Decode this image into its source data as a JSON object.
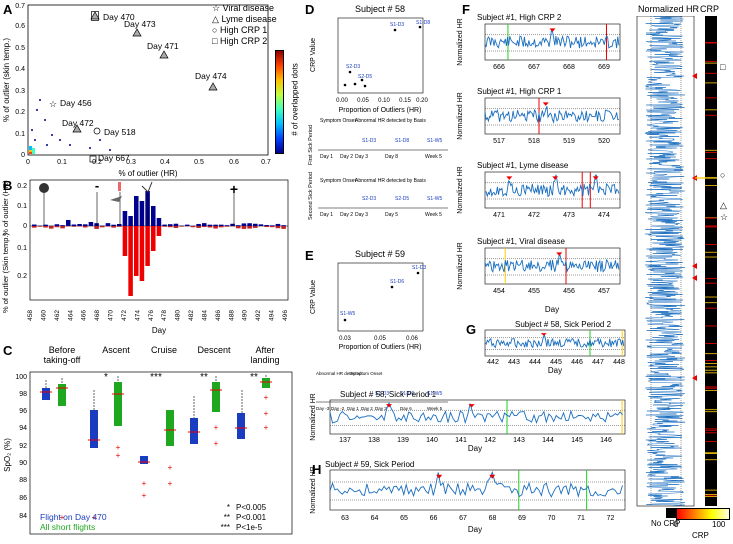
{
  "panel_labels": {
    "A": "A",
    "B": "B",
    "C": "C",
    "D": "D",
    "E": "E",
    "F": "F",
    "G": "G",
    "H": "H"
  },
  "panelA": {
    "legend": [
      "Viral disease",
      "Lyme disease",
      "High CRP 1",
      "High CRP 2"
    ],
    "colorbar_label": "# of overlapped dots",
    "colorbar_colors": [
      "#00008f",
      "#0040ff",
      "#00c0ff",
      "#40ff c0",
      "#c0ff40",
      "#ffc000",
      "#ff4000",
      "#8f0000"
    ]
  },
  "panelB": {
    "xlabel": "Day",
    "ylabel_top": "% of outlier (HR)",
    "ylabel_bottom": "% of outlier (Skin temp.)",
    "plus": "+",
    "minus": "-"
  },
  "panelC": {
    "ylabel": "SpO₂ (%)",
    "groups": [
      "Before taking-off",
      "Ascent",
      "Cruise",
      "Descent",
      "After landing"
    ],
    "signif": [
      "",
      "*",
      "***",
      "**",
      "**"
    ],
    "legend_blue": "Flight on Day 470",
    "legend_green": "All short flights",
    "keys": [
      {
        "sym": "*",
        "txt": "P<0.005"
      },
      {
        "sym": "**",
        "txt": "P<0.001"
      },
      {
        "sym": "***",
        "txt": "P<1e-5"
      }
    ]
  },
  "panelD": {
    "title": "Subject # 58",
    "ylabel": "CRP Value",
    "xlabel": "Proportion of Outliers (HR)",
    "first": "First Sick Period",
    "second": "Second Sick Period",
    "onset": "Symptom Onset",
    "abn": "Abnormal HR detected by Basis",
    "days1": [
      "Day 1",
      "Day 2",
      "Day 3",
      "Day 8",
      "Week 5"
    ],
    "days2": [
      "Day 1",
      "Day 2",
      "Day 3",
      "Day 5",
      "Week 5"
    ]
  },
  "panelE": {
    "title": "Subject # 59",
    "ylabel": "CRP Value",
    "xlabel": "Proportion of Outliers (HR)",
    "abn": "Abnormal HR detected",
    "onset": "Symptom Onset",
    "days": [
      "Day -3",
      "Day -2",
      "Day 1",
      "Day 2",
      "Day 3",
      "Day 6",
      "Week 5"
    ]
  },
  "panelF": {
    "subtitles": [
      "Subject #1, High CRP 2",
      "Subject #1, High CRP 1",
      "Subject #1, Lyme disease",
      "Subject #1, Viral disease"
    ],
    "ylabel": "Normalized HR",
    "xlabel": "Day",
    "ticks": [
      [
        "666",
        "667",
        "668",
        "669"
      ],
      [
        "517",
        "518",
        "519",
        "520"
      ],
      [
        "471",
        "472",
        "473",
        "474"
      ],
      [
        "454",
        "455",
        "456",
        "457"
      ]
    ]
  },
  "panelG": {
    "title1": "Subject # 58, Sick Period 2",
    "ticks1": [
      "442",
      "443",
      "444",
      "445",
      "446",
      "447",
      "448"
    ],
    "title2": "Subject # 58, Sick Period 1",
    "ticks2": [
      "137",
      "138",
      "139",
      "140",
      "141",
      "142",
      "143",
      "144",
      "145",
      "146"
    ],
    "ylabel": "Normalized HR",
    "xlabel": "Day"
  },
  "panelH": {
    "title": "Subject # 59, Sick Period",
    "ticks": [
      "63",
      "64",
      "65",
      "66",
      "67",
      "68",
      "69",
      "70",
      "71",
      "72"
    ],
    "ylabel": "Normalized HR",
    "xlabel": "Day"
  },
  "strip": {
    "hr_label": "Normalized HR",
    "crp_label": "CRP",
    "no_crp": "No CRP",
    "crp_cb": "CRP",
    "cb_max": "100",
    "cb_min": "0"
  }
}
